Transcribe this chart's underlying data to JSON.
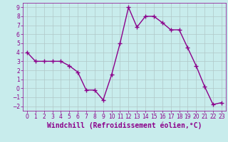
{
  "x": [
    0,
    1,
    2,
    3,
    4,
    5,
    6,
    7,
    8,
    9,
    10,
    11,
    12,
    13,
    14,
    15,
    16,
    17,
    18,
    19,
    20,
    21,
    22,
    23
  ],
  "y": [
    4.0,
    3.0,
    3.0,
    3.0,
    3.0,
    2.5,
    1.8,
    -0.2,
    -0.2,
    -1.3,
    1.5,
    5.0,
    9.0,
    6.8,
    8.0,
    8.0,
    7.3,
    6.5,
    6.5,
    4.5,
    2.5,
    0.2,
    -1.8,
    -1.6
  ],
  "line_color": "#8B008B",
  "marker": "+",
  "marker_size": 4,
  "bg_color": "#c8ecec",
  "grid_color": "#b0c8c8",
  "xlabel": "Windchill (Refroidissement éolien,°C)",
  "xlabel_color": "#8B008B",
  "tick_color": "#8B008B",
  "xlim": [
    -0.5,
    23.5
  ],
  "ylim": [
    -2.5,
    9.5
  ],
  "yticks": [
    -2,
    -1,
    0,
    1,
    2,
    3,
    4,
    5,
    6,
    7,
    8,
    9
  ],
  "xticks": [
    0,
    1,
    2,
    3,
    4,
    5,
    6,
    7,
    8,
    9,
    10,
    11,
    12,
    13,
    14,
    15,
    16,
    17,
    18,
    19,
    20,
    21,
    22,
    23
  ],
  "tick_fontsize": 5.5,
  "xlabel_fontsize": 7,
  "line_width": 1.0
}
